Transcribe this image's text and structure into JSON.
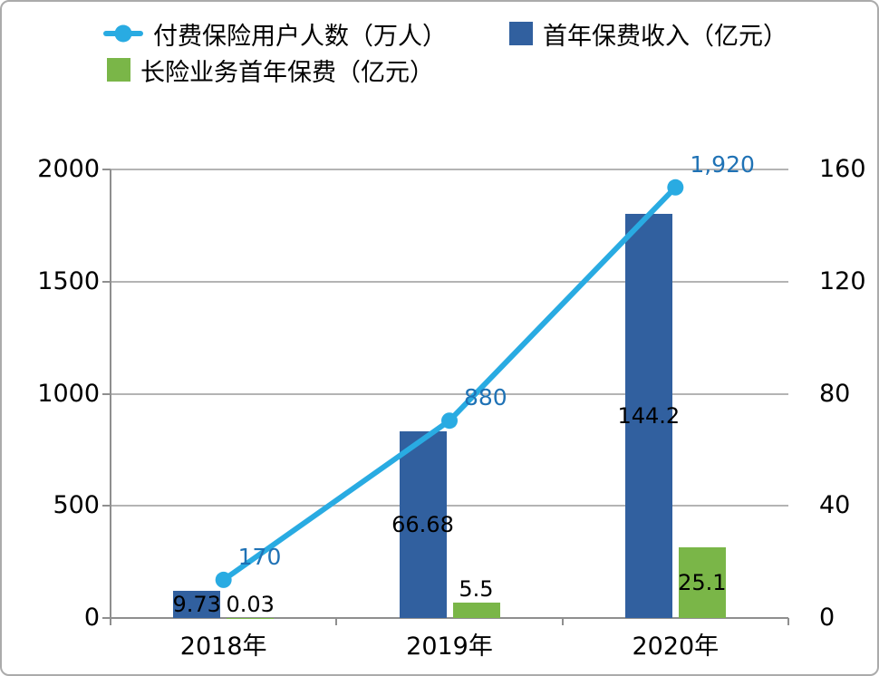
{
  "chart_data": {
    "type": "combo",
    "title": "",
    "categories": [
      "2018年",
      "2019年",
      "2020年"
    ],
    "series": [
      {
        "name": "付费保险用户人数（万人）",
        "type": "line",
        "axis": "left",
        "color": "#29ABE2",
        "values": [
          170,
          880,
          1920
        ],
        "labels": [
          "170",
          "880",
          "1,920"
        ]
      },
      {
        "name": "首年保费收入（亿元）",
        "type": "bar",
        "axis": "right",
        "color": "#31609F",
        "values": [
          9.73,
          66.68,
          144.2
        ],
        "labels": [
          "9.73",
          "66.68",
          "144.2"
        ]
      },
      {
        "name": "长险业务首年保费（亿元）",
        "type": "bar",
        "axis": "right",
        "color": "#7AB648",
        "values": [
          0.03,
          5.5,
          25.1
        ],
        "labels": [
          "0.03",
          "5.5",
          "25.1"
        ]
      }
    ],
    "left_axis": {
      "min": 0,
      "max": 2000,
      "step": 500,
      "ticks": [
        "0",
        "500",
        "1000",
        "1500",
        "2000"
      ]
    },
    "right_axis": {
      "min": 0,
      "max": 160,
      "step": 40,
      "ticks": [
        "0",
        "40",
        "80",
        "120",
        "160"
      ]
    },
    "grid": true,
    "legend_position": "top",
    "line_label_color": "#1F72B5",
    "bar_label_color": "#000000"
  }
}
